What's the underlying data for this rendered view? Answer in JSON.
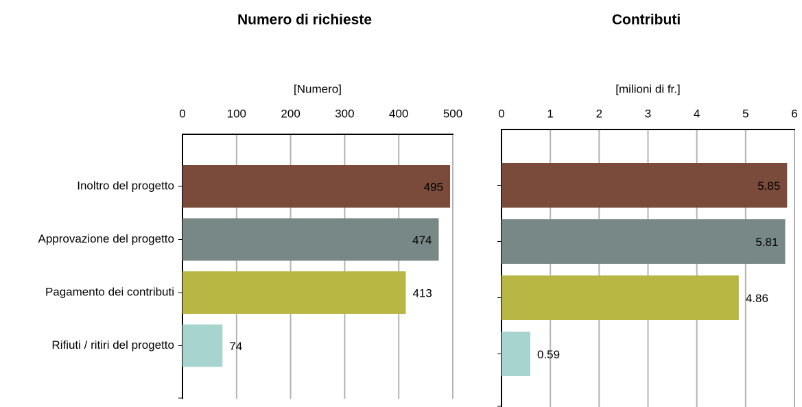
{
  "chart_data": [
    {
      "type": "bar",
      "title": "Numero di richieste",
      "x_label": "[Numero]",
      "categories": [
        "Inoltro del progetto",
        "Approvazione del progetto",
        "Pagamento dei contributi",
        "Rifiuti  / ritiri del progetto"
      ],
      "values": [
        495,
        474,
        413,
        74
      ],
      "colors": [
        "#7a4b3b",
        "#788886",
        "#b9b743",
        "#a8d4cf"
      ],
      "xlim": [
        0,
        500
      ],
      "xticks": [
        0,
        100,
        200,
        300,
        400,
        500
      ],
      "grid": true
    },
    {
      "type": "bar",
      "title": "Contributi",
      "x_label": "[milioni di fr.]",
      "categories": [
        null,
        null,
        null,
        null
      ],
      "values": [
        5.85,
        5.81,
        4.86,
        0.59
      ],
      "colors": [
        "#7a4b3b",
        "#788886",
        "#b9b743",
        "#a8d4cf"
      ],
      "xlim": [
        0,
        6
      ],
      "xticks": [
        0,
        1,
        2,
        3,
        4,
        5,
        6
      ],
      "grid": true
    }
  ]
}
